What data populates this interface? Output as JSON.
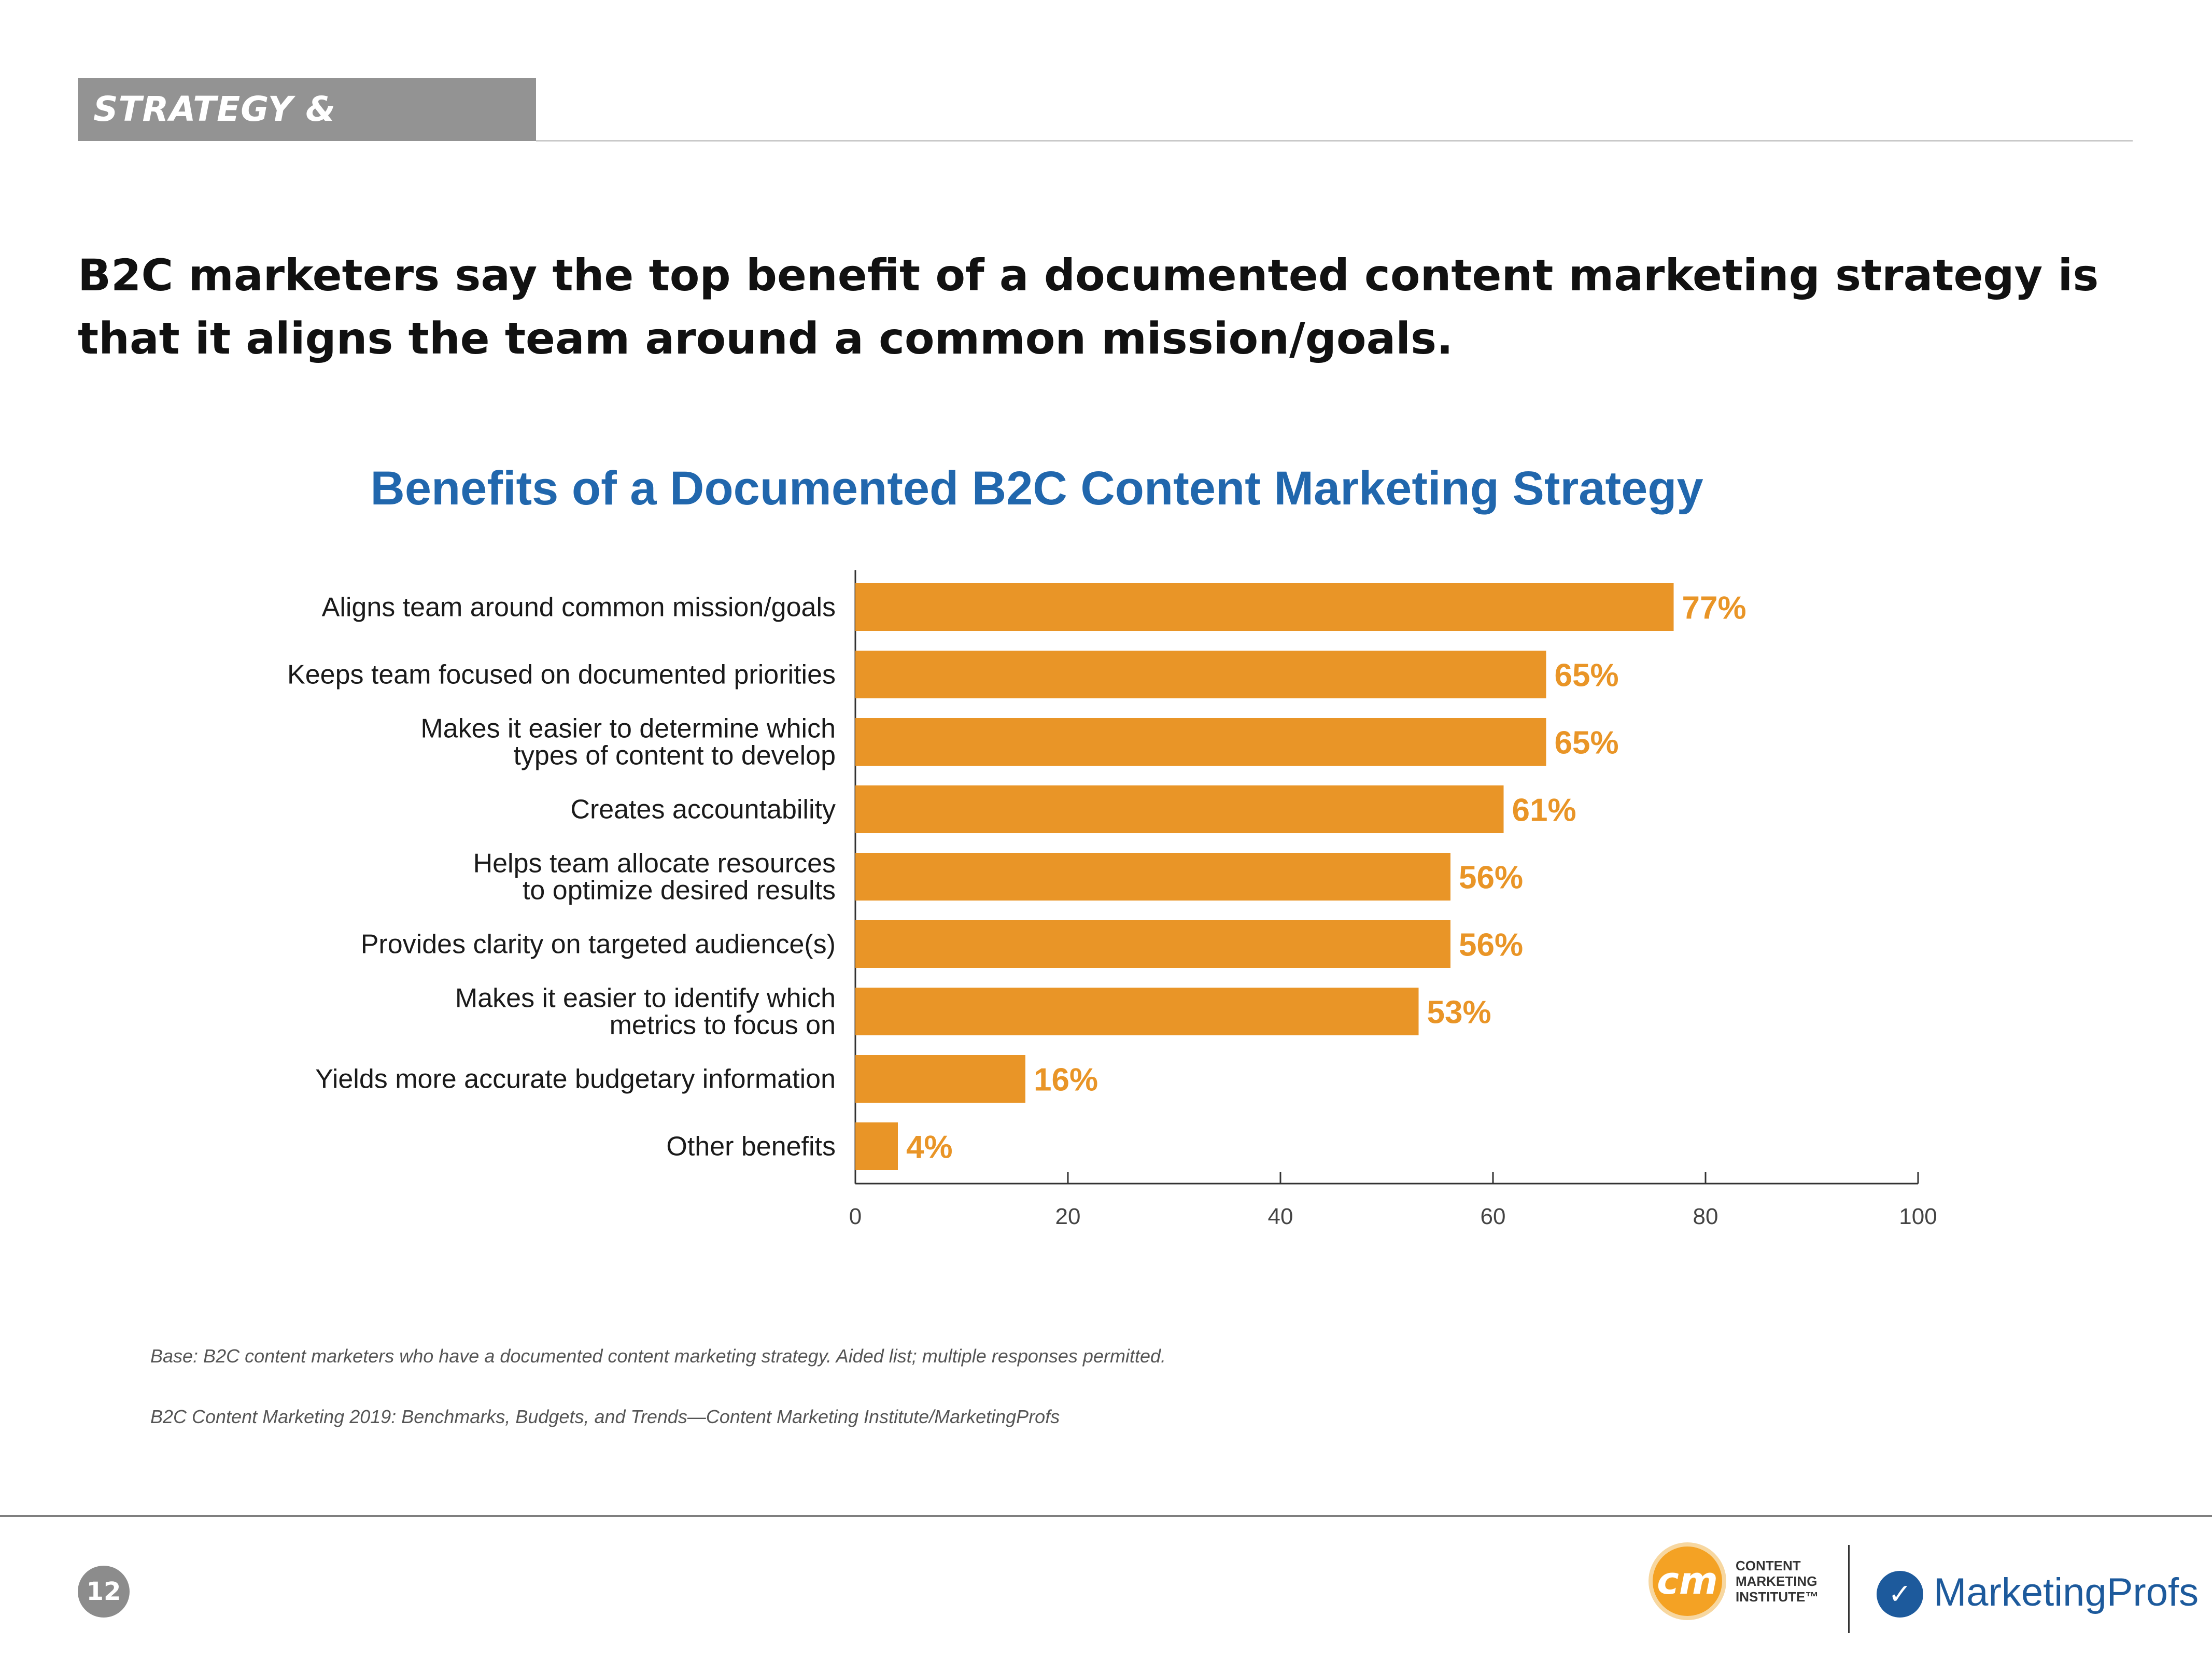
{
  "header": {
    "section_tag": "STRATEGY & OPINIONS",
    "headline": "B2C marketers say the top benefit of a documented content marketing strategy is that it aligns the team around a common mission/goals."
  },
  "chart_data": {
    "type": "bar",
    "orientation": "horizontal",
    "title": "Benefits of a Documented B2C Content Marketing Strategy",
    "categories": [
      [
        "Aligns team around common mission/goals"
      ],
      [
        "Keeps team focused on documented priorities"
      ],
      [
        "Makes it easier to determine which",
        "types of content to develop"
      ],
      [
        "Creates accountability"
      ],
      [
        "Helps team allocate resources",
        "to optimize desired results"
      ],
      [
        "Provides clarity on targeted audience(s)"
      ],
      [
        "Makes it easier to identify which",
        "metrics to focus on"
      ],
      [
        "Yields more accurate budgetary information"
      ],
      [
        "Other benefits"
      ]
    ],
    "values": [
      77,
      65,
      65,
      61,
      56,
      56,
      53,
      16,
      4
    ],
    "value_labels": [
      "77%",
      "65%",
      "65%",
      "61%",
      "56%",
      "56%",
      "53%",
      "16%",
      "4%"
    ],
    "x_ticks": [
      0,
      20,
      40,
      60,
      80,
      100
    ],
    "xlim": [
      0,
      100
    ],
    "xlabel": "",
    "ylabel": "",
    "bar_color": "#e99527",
    "label_color": "#e99527"
  },
  "footnotes": {
    "base": "Base: B2C content marketers who have a documented content marketing strategy. Aided list; multiple responses permitted.",
    "source": "B2C Content Marketing 2019: Benchmarks, Budgets, and Trends—Content Marketing Institute/MarketingProfs"
  },
  "footer": {
    "page_number": "12",
    "cmi_mark": "cm",
    "cmi_lines": [
      "CONTENT",
      "MARKETING",
      "INSTITUTE™"
    ],
    "mp_name": "MarketingProfs"
  }
}
